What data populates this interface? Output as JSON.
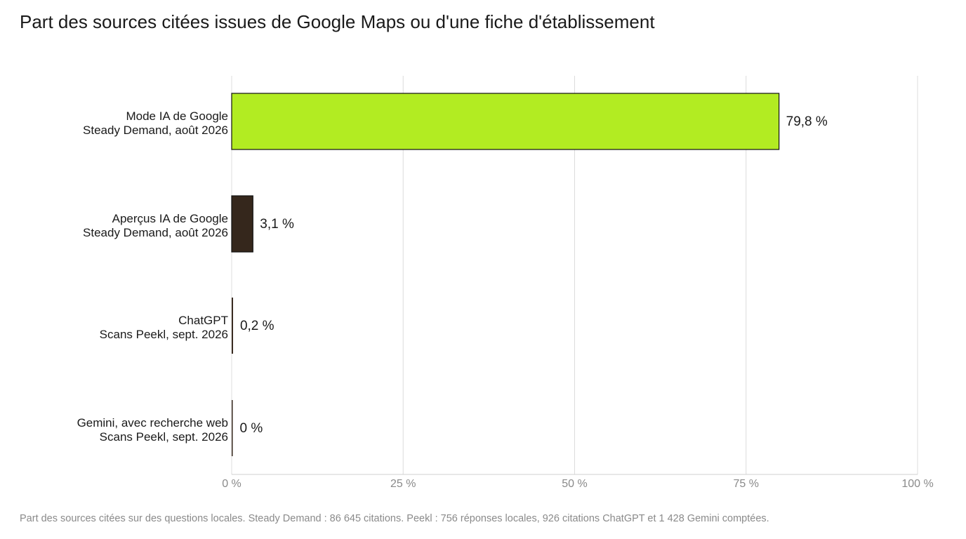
{
  "title": "Part des sources citées issues de Google Maps ou d'une fiche d'établissement",
  "footnote": "Part des sources citées sur des questions locales. Steady Demand : 86 645 citations. Peekl : 756 réponses locales, 926 citations ChatGPT et 1 428 Gemini comptées.",
  "chart_data": {
    "type": "bar",
    "orientation": "horizontal",
    "title": "Part des sources citées issues de Google Maps ou d'une fiche d'établissement",
    "categories": [
      [
        "Mode IA de Google",
        "Steady Demand, août 2026"
      ],
      [
        "Aperçus IA de Google",
        "Steady Demand, août 2026"
      ],
      [
        "ChatGPT",
        "Scans Peekl, sept. 2026"
      ],
      [
        "Gemini, avec recherche web",
        "Scans Peekl, sept. 2026"
      ]
    ],
    "values": [
      79.8,
      3.1,
      0.2,
      0
    ],
    "value_labels": [
      "79,8 %",
      "3,1 %",
      "0,2 %",
      "0 %"
    ],
    "bar_colors": [
      "#b2ec22",
      "#35271c",
      "#35271c",
      "#35271c"
    ],
    "xlim": [
      0,
      100
    ],
    "xticks": [
      0,
      25,
      50,
      75,
      100
    ],
    "xtick_labels": [
      "0 %",
      "25 %",
      "50 %",
      "75 %",
      "100 %"
    ],
    "grid": true,
    "legend": "none",
    "xlabel": "",
    "ylabel": ""
  }
}
